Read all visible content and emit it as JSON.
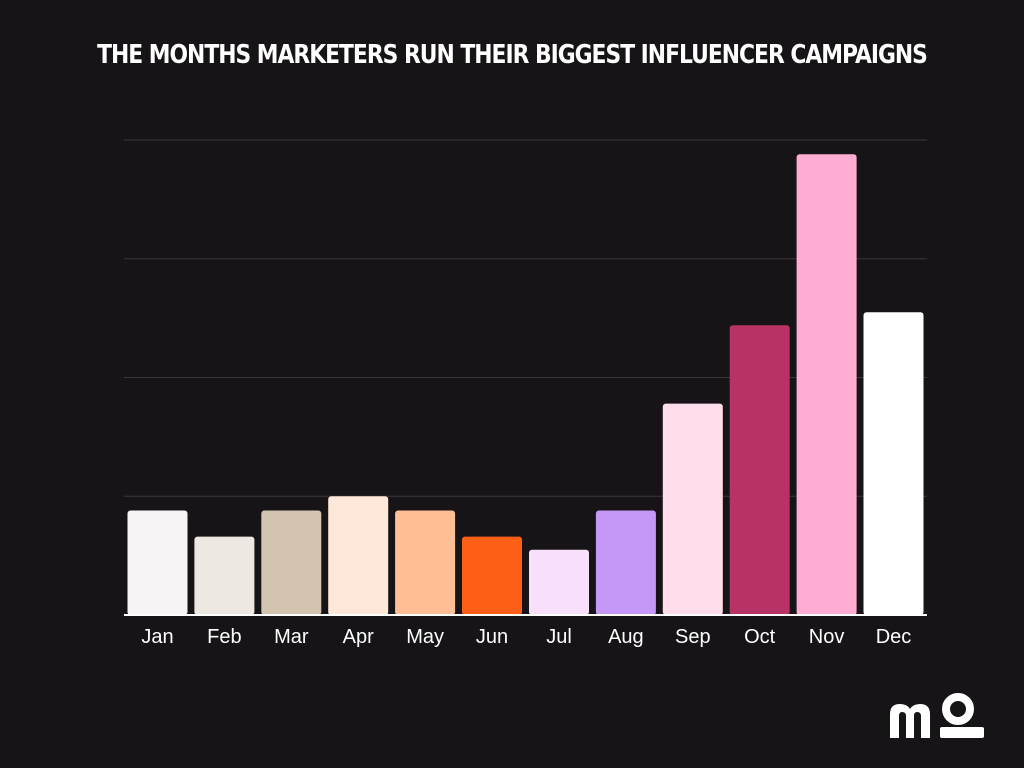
{
  "chart_data": {
    "type": "bar",
    "title": "THE MONTHS MARKETERS RUN THEIR BIGGEST INFLUENCER CAMPAIGNS",
    "categories": [
      "Jan",
      "Feb",
      "Mar",
      "Apr",
      "May",
      "Jun",
      "Jul",
      "Aug",
      "Sep",
      "Oct",
      "Nov",
      "Dec"
    ],
    "values": [
      8.8,
      6.6,
      8.8,
      10.0,
      8.8,
      6.6,
      5.5,
      8.8,
      17.8,
      24.4,
      38.8,
      25.5
    ],
    "colors": [
      "#f6f4f5",
      "#ede8e2",
      "#d3c4b2",
      "#ffe8d9",
      "#ffbe96",
      "#fd5f17",
      "#f8e0fa",
      "#c597f6",
      "#ffdcea",
      "#b93265",
      "#ffadd3",
      "#ffffff"
    ],
    "ylim": [
      0,
      40
    ],
    "gridlines": [
      0,
      10,
      20,
      30,
      40
    ],
    "xlabel": "",
    "ylabel": "",
    "grid": true,
    "legend": "none"
  },
  "brand": {
    "logo_text": "mo",
    "logo_icon": "brand-logo"
  },
  "colors": {
    "background": "#171417",
    "gridline": "#3a373a",
    "axis": "#ffffff",
    "text": "#ffffff"
  }
}
